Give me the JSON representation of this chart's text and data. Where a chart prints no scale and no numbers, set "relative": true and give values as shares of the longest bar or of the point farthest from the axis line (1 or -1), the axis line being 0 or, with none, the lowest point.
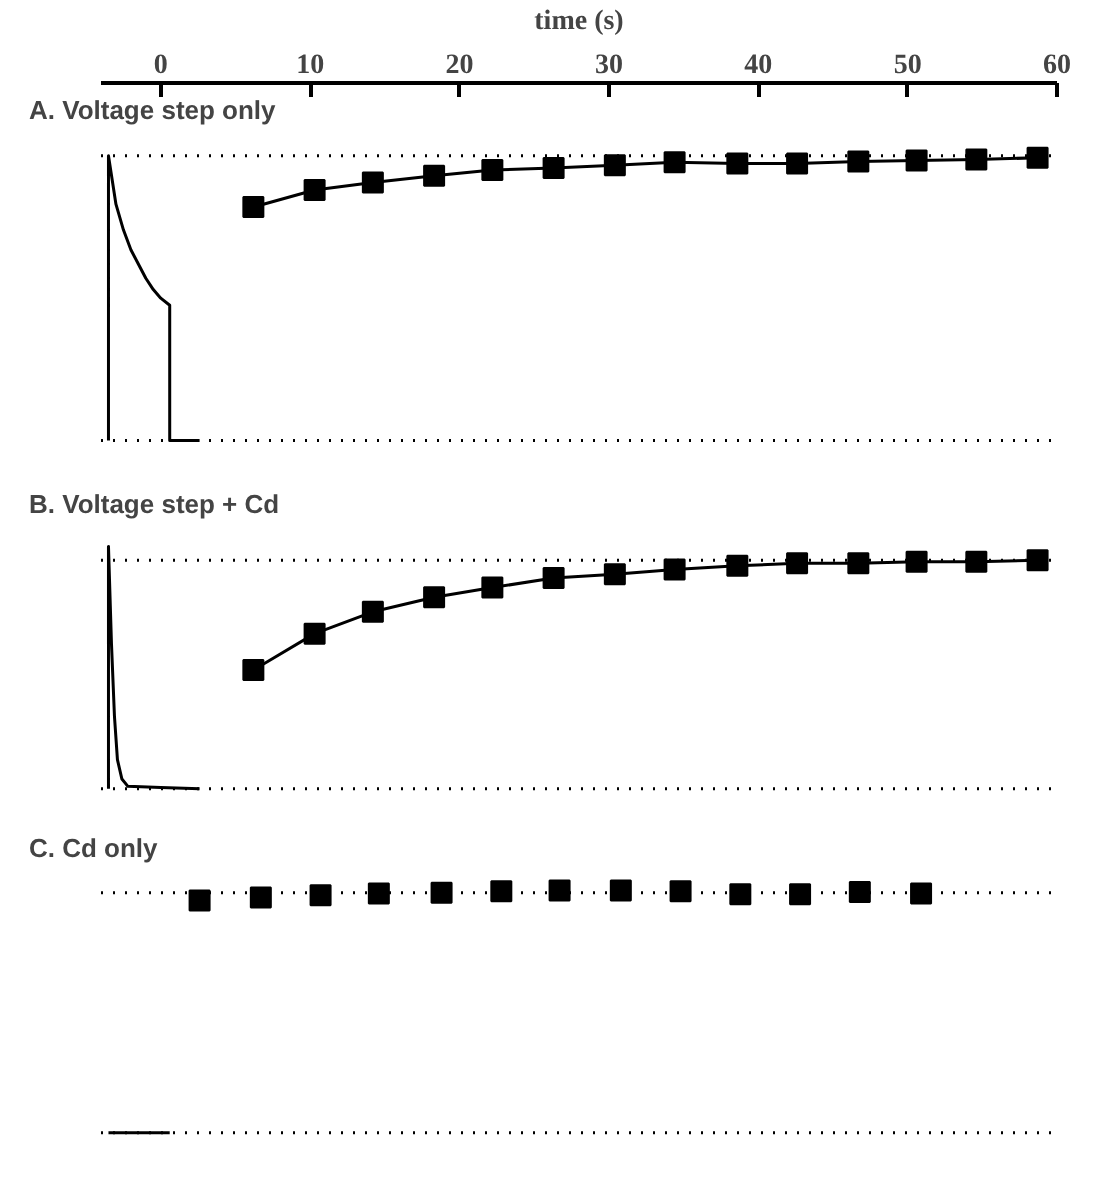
{
  "chart_data": [
    {
      "type": "line",
      "title": "A. Voltage step only",
      "xlabel": "time (s)",
      "relative": true,
      "xlim": [
        -4,
        60
      ],
      "xticks": [
        0,
        10,
        20,
        30,
        40,
        50,
        60
      ],
      "tick_labels": "x",
      "grid": false,
      "series": [
        {
          "type": "line",
          "color": "#000000",
          "marker": "none",
          "x": [
            -3.5,
            -3.5,
            -3.0,
            -2.5,
            -2.0,
            -1.5,
            -1.0,
            -0.5,
            0.0,
            0.6,
            0.6,
            2.6
          ],
          "values": [
            0,
            1.0,
            0.83,
            0.74,
            0.67,
            0.62,
            0.57,
            0.53,
            0.5,
            0.475,
            0,
            0
          ]
        },
        {
          "color": "#000000",
          "marker": "square",
          "x": [
            6.2,
            10.3,
            14.2,
            18.3,
            22.2,
            26.3,
            30.4,
            34.4,
            38.6,
            42.6,
            46.7,
            50.6,
            54.6,
            58.7
          ],
          "values": [
            0.82,
            0.88,
            0.906,
            0.93,
            0.95,
            0.957,
            0.967,
            0.977,
            0.973,
            0.973,
            0.98,
            0.983,
            0.987,
            0.993
          ]
        }
      ],
      "ref_lines": [
        {
          "axis": "y",
          "value": 1.0,
          "line_style": "dotted"
        },
        {
          "axis": "y",
          "value": 0,
          "line_style": "dotted"
        }
      ]
    },
    {
      "type": "line",
      "title": "B. Voltage step + Cd",
      "relative": true,
      "xlim": [
        -4,
        60
      ],
      "tick_labels": false,
      "grid": false,
      "series": [
        {
          "type": "line",
          "color": "#000000",
          "marker": "none",
          "x": [
            -3.5,
            -3.5,
            -3.3,
            -3.1,
            -2.9,
            -2.6,
            -2.2,
            0.0,
            2.6
          ],
          "values": [
            0,
            1.0,
            0.6,
            0.3,
            0.12,
            0.04,
            0.01,
            0.005,
            0
          ]
        },
        {
          "color": "#000000",
          "marker": "square",
          "x": [
            6.2,
            10.3,
            14.2,
            18.3,
            22.2,
            26.3,
            30.4,
            34.4,
            38.6,
            42.6,
            46.7,
            50.6,
            54.6,
            58.7
          ],
          "values": [
            0.49,
            0.64,
            0.73,
            0.79,
            0.83,
            0.87,
            0.885,
            0.905,
            0.92,
            0.93,
            0.93,
            0.937,
            0.937,
            0.943
          ]
        }
      ],
      "ref_lines": [
        {
          "axis": "y",
          "value": 0.943,
          "line_style": "dotted"
        },
        {
          "axis": "y",
          "value": 0,
          "line_style": "dotted"
        }
      ]
    },
    {
      "type": "scatter",
      "title": "C.  Cd only",
      "relative": true,
      "xlim": [
        -4,
        60
      ],
      "tick_labels": false,
      "grid": false,
      "series": [
        {
          "type": "line",
          "color": "#000000",
          "marker": "none",
          "x": [
            -3.5,
            0.6
          ],
          "values": [
            0,
            0
          ]
        },
        {
          "color": "#000000",
          "marker": "square",
          "x": [
            2.6,
            6.7,
            10.7,
            14.6,
            18.8,
            22.8,
            26.7,
            30.8,
            34.8,
            38.8,
            42.8,
            46.8,
            50.9
          ],
          "values": [
            0.958,
            0.971,
            0.98,
            0.987,
            0.99,
            0.996,
            1.0,
            1.0,
            0.996,
            0.984,
            0.984,
            0.993,
            0.987
          ]
        }
      ],
      "ref_lines": [
        {
          "axis": "y",
          "value": 0.99,
          "line_style": "dotted"
        },
        {
          "axis": "y",
          "value": 0,
          "line_style": "dotted"
        }
      ]
    }
  ]
}
